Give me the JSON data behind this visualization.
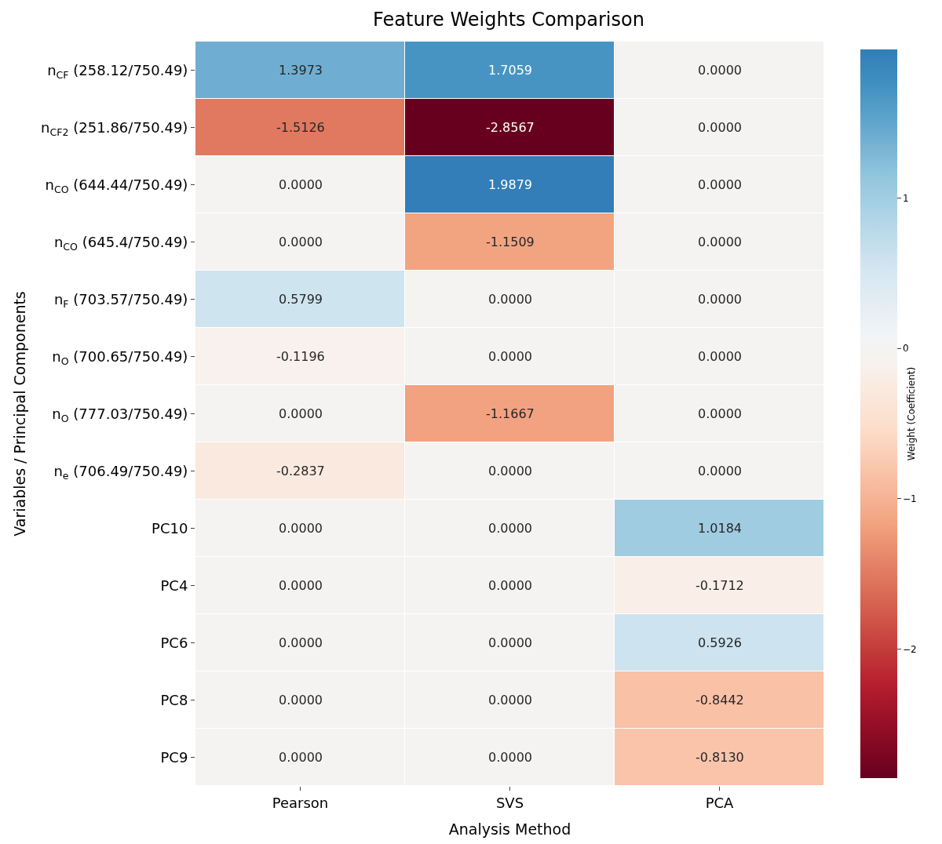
{
  "chart_data": {
    "type": "heatmap",
    "title": "Feature Weights Comparison",
    "xlabel": "Analysis Method",
    "ylabel": "Variables / Principal Components",
    "clabel": "Weight (Coefficient)",
    "categories": [
      "Pearson",
      "SVS",
      "PCA"
    ],
    "y_categories": [
      "n$_{CF}$ (258.12/750.49)",
      "n$_{CF2}$ (251.86/750.49)",
      "n$_{CO}$ (644.44/750.49)",
      "n$_{CO}$ (645.4/750.49)",
      "n$_{F}$ (703.57/750.49)",
      "n$_{O}$ (700.65/750.49)",
      "n$_{O}$ (777.03/750.49)",
      "n$_{e}$ (706.49/750.49)",
      "PC10",
      "PC4",
      "PC6",
      "PC8",
      "PC9"
    ],
    "cells": [
      [
        1.3973,
        1.7059,
        0.0
      ],
      [
        -1.5126,
        -2.8567,
        0.0
      ],
      [
        0.0,
        1.9879,
        0.0
      ],
      [
        0.0,
        -1.1509,
        0.0
      ],
      [
        0.5799,
        0.0,
        0.0
      ],
      [
        -0.1196,
        0.0,
        0.0
      ],
      [
        0.0,
        -1.1667,
        0.0
      ],
      [
        -0.2837,
        0.0,
        0.0
      ],
      [
        0.0,
        0.0,
        1.0184
      ],
      [
        0.0,
        0.0,
        -0.1712
      ],
      [
        0.0,
        0.0,
        0.5926
      ],
      [
        0.0,
        0.0,
        -0.8442
      ],
      [
        0.0,
        0.0,
        -0.813
      ]
    ],
    "cell_labels": [
      [
        "1.3973",
        "1.7059",
        "0.0000"
      ],
      [
        "-1.5126",
        "-2.8567",
        "0.0000"
      ],
      [
        "0.0000",
        "1.9879",
        "0.0000"
      ],
      [
        "0.0000",
        "-1.1509",
        "0.0000"
      ],
      [
        "0.5799",
        "0.0000",
        "0.0000"
      ],
      [
        "-0.1196",
        "0.0000",
        "0.0000"
      ],
      [
        "0.0000",
        "-1.1667",
        "0.0000"
      ],
      [
        "-0.2837",
        "0.0000",
        "0.0000"
      ],
      [
        "0.0000",
        "0.0000",
        "1.0184"
      ],
      [
        "0.0000",
        "0.0000",
        "-0.1712"
      ],
      [
        "0.0000",
        "0.0000",
        "0.5926"
      ],
      [
        "0.0000",
        "0.0000",
        "-0.8442"
      ],
      [
        "0.0000",
        "0.0000",
        "-0.8130"
      ]
    ],
    "clim": [
      -2.8567,
      1.9879
    ],
    "cticks": [
      {
        "value": -2,
        "label": "−2"
      },
      {
        "value": -1,
        "label": "−1"
      },
      0,
      1
    ]
  }
}
